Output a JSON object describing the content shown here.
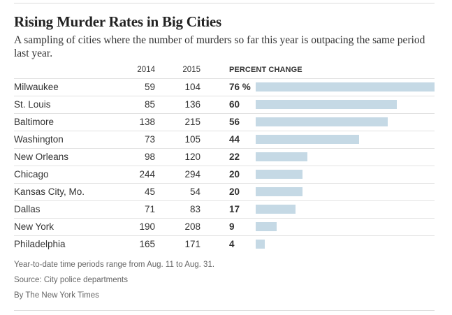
{
  "chart_data": {
    "type": "bar",
    "title": "Rising Murder Rates in Big Cities",
    "subtitle": "A sampling of cities where the number of murders so far this year is outpacing the same period last year.",
    "columns": {
      "col_2014": "2014",
      "col_2015": "2015",
      "col_change": "PERCENT CHANGE"
    },
    "categories": [
      "Milwaukee",
      "St. Louis",
      "Baltimore",
      "Washington",
      "New Orleans",
      "Chicago",
      "Kansas City, Mo.",
      "Dallas",
      "New York",
      "Philadelphia"
    ],
    "values_2014": [
      59,
      85,
      138,
      73,
      98,
      244,
      45,
      71,
      190,
      165
    ],
    "values_2015": [
      104,
      136,
      215,
      105,
      120,
      294,
      54,
      83,
      208,
      171
    ],
    "percent_change": [
      76,
      60,
      56,
      44,
      22,
      20,
      20,
      17,
      9,
      4
    ],
    "percent_change_labels": [
      "76 %",
      "60",
      "56",
      "44",
      "22",
      "20",
      "20",
      "17",
      "9",
      "4"
    ],
    "xlim": [
      0,
      76
    ],
    "bar_color": "#c5d9e5"
  },
  "footnotes": {
    "note": "Year-to-date time periods range from Aug. 11 to Aug. 31.",
    "source": "Source: City police departments",
    "credit": "By The New York Times"
  }
}
